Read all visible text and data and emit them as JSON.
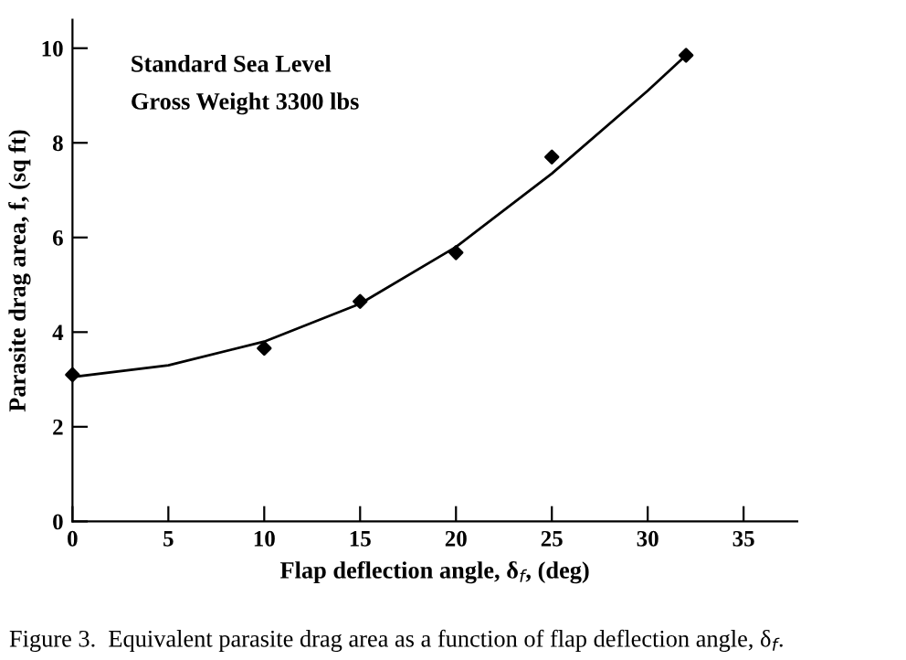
{
  "chart_data": {
    "type": "scatter",
    "xlabel": "Flap deflection angle, δ$_{f}$, (deg)",
    "ylabel": "Parasite drag area, f, (sq ft)",
    "annotations": [
      "Standard Sea Level",
      "Gross Weight 3300 lbs",
      "Figure 3.  Equivalent parasite drag area as a function of flap deflection angle, δ$_{f}$."
    ],
    "x": [
      0,
      10,
      15,
      20,
      25,
      32
    ],
    "series": [
      {
        "color": "#000000",
        "marker": "diamond",
        "values": [
          3.1,
          3.66,
          4.65,
          5.68,
          7.7,
          9.85
        ]
      },
      {
        "type": "line",
        "color": "#000000",
        "marker": "none",
        "line_style": "solid",
        "x": [
          0,
          5,
          10,
          15,
          20,
          25,
          30,
          32
        ],
        "values": [
          3.05,
          3.3,
          3.8,
          4.6,
          5.8,
          7.35,
          9.1,
          9.85
        ]
      }
    ],
    "xlim": [
      0,
      37.8
    ],
    "ylim": [
      0,
      10.6
    ],
    "xticks": [
      0,
      5,
      10,
      15,
      20,
      25,
      30,
      35
    ],
    "yticks": [
      0,
      2,
      4,
      6,
      8,
      10
    ],
    "grid": false,
    "legend": false
  }
}
